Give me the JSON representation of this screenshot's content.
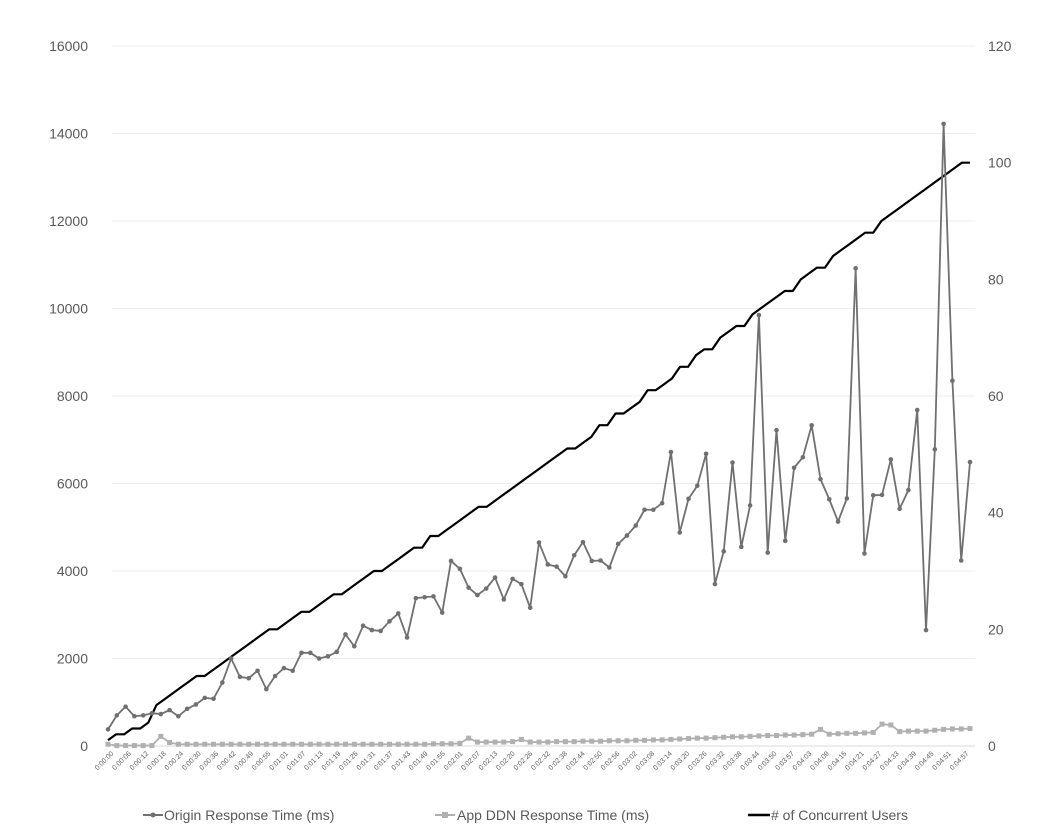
{
  "chart_data": {
    "type": "line",
    "title": "",
    "xlabel": "",
    "ylabel": "",
    "y2label": "",
    "ylim": [
      0,
      16000
    ],
    "y2lim": [
      0,
      120
    ],
    "yticks": [
      "0",
      "2000",
      "4000",
      "6000",
      "8000",
      "10000",
      "12000",
      "14000",
      "16000"
    ],
    "y2ticks": [
      "0",
      "20",
      "40",
      "60",
      "80",
      "100",
      "120"
    ],
    "grid": true,
    "legend_position": "bottom",
    "x_tick_labels": [
      "0:00:00",
      "0:00:06",
      "0:00:12",
      "0:00:18",
      "0:00:24",
      "0:00:30",
      "0:00:36",
      "0:00:42",
      "0:00:49",
      "0:00:55",
      "0:01:01",
      "0:01:07",
      "0:01:13",
      "0:01:19",
      "0:01:25",
      "0:01:31",
      "0:01:37",
      "0:01:43",
      "0:01:49",
      "0:01:55",
      "0:02:01",
      "0:02:07",
      "0:02:13",
      "0:02:20",
      "0:02:26",
      "0:02:32",
      "0:02:38",
      "0:02:44",
      "0:02:50",
      "0:02:56",
      "0:03:02",
      "0:03:08",
      "0:03:14",
      "0:03:20",
      "0:03:26",
      "0:03:32",
      "0:03:38",
      "0:03:44",
      "0:03:50",
      "0:03:57",
      "0:04:03",
      "0:04:09",
      "0:04:15",
      "0:04:21",
      "0:04:27",
      "0:04:33",
      "0:04:39",
      "0:04:45",
      "0:04:51",
      "0:04:57"
    ],
    "series": [
      {
        "name": "Origin Response Time (ms)",
        "axis": "left",
        "color": "#707070",
        "marker": "circle",
        "values": [
          380,
          700,
          900,
          680,
          700,
          750,
          730,
          820,
          680,
          850,
          950,
          1100,
          1080,
          1450,
          2000,
          1580,
          1550,
          1720,
          1300,
          1600,
          1780,
          1720,
          2130,
          2130,
          2000,
          2050,
          2150,
          2550,
          2280,
          2750,
          2650,
          2630,
          2850,
          3030,
          2480,
          3380,
          3400,
          3420,
          3050,
          4230,
          4050,
          3620,
          3450,
          3600,
          3850,
          3350,
          3820,
          3700,
          3160,
          4650,
          4150,
          4100,
          3880,
          4360,
          4660,
          4230,
          4240,
          4080,
          4620,
          4810,
          5040,
          5400,
          5400,
          5550,
          6720,
          4880,
          5650,
          5950,
          6680,
          3700,
          4450,
          6480,
          4550,
          5500,
          9850,
          4420,
          7220,
          4690,
          6360,
          6600,
          7330,
          6100,
          5640,
          5130,
          5660,
          10920,
          4400,
          5730,
          5740,
          6550,
          5420,
          5850,
          7680,
          2650,
          6780,
          14220,
          8350,
          4240,
          6490
        ],
        "point_count": 99
      },
      {
        "name": "App DDN Response Time (ms)",
        "axis": "left",
        "color": "#b0b0b0",
        "marker": "square",
        "values": [
          40,
          10,
          10,
          10,
          10,
          10,
          220,
          80,
          40,
          40,
          40,
          40,
          40,
          40,
          40,
          40,
          40,
          40,
          40,
          40,
          40,
          40,
          40,
          40,
          40,
          40,
          40,
          40,
          40,
          40,
          40,
          40,
          40,
          40,
          40,
          40,
          40,
          50,
          50,
          50,
          60,
          180,
          90,
          90,
          90,
          90,
          100,
          150,
          90,
          90,
          90,
          100,
          100,
          100,
          110,
          110,
          110,
          120,
          120,
          120,
          130,
          130,
          140,
          140,
          150,
          160,
          170,
          180,
          180,
          190,
          200,
          210,
          210,
          220,
          230,
          240,
          240,
          250,
          250,
          260,
          270,
          380,
          270,
          280,
          290,
          290,
          300,
          310,
          500,
          480,
          330,
          340,
          340,
          340,
          360,
          380,
          390,
          390,
          400
        ],
        "point_count": 99
      },
      {
        "name": "# of Concurrent Users",
        "axis": "right",
        "color": "#000000",
        "marker": "none",
        "values": [
          1,
          2,
          2,
          3,
          3,
          4,
          7,
          8,
          9,
          10,
          11,
          12,
          12,
          13,
          14,
          15,
          16,
          17,
          18,
          19,
          20,
          20,
          21,
          22,
          23,
          23,
          24,
          25,
          26,
          26,
          27,
          28,
          29,
          30,
          30,
          31,
          32,
          33,
          34,
          34,
          36,
          36,
          37,
          38,
          39,
          40,
          41,
          41,
          42,
          43,
          44,
          45,
          46,
          47,
          48,
          49,
          50,
          51,
          51,
          52,
          53,
          55,
          55,
          57,
          57,
          58,
          59,
          61,
          61,
          62,
          63,
          65,
          65,
          67,
          68,
          68,
          70,
          71,
          72,
          72,
          74,
          75,
          76,
          77,
          78,
          78,
          80,
          81,
          82,
          82,
          84,
          85,
          86,
          87,
          88,
          88,
          90,
          91,
          92,
          93,
          94,
          95,
          96,
          97,
          98,
          99,
          100,
          100
        ]
      }
    ]
  }
}
